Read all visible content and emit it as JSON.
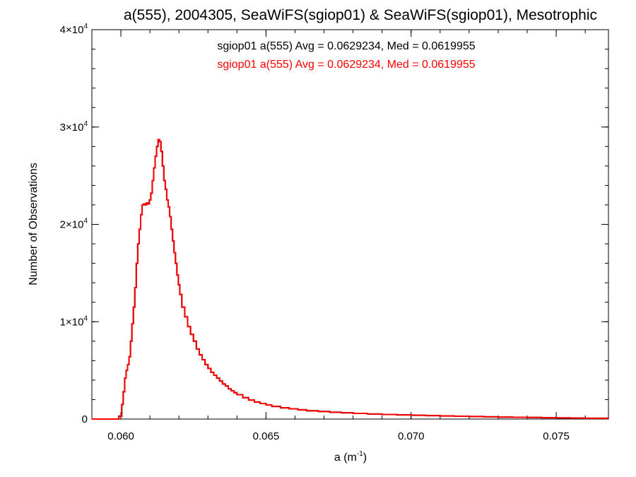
{
  "chart_data": {
    "type": "histogram-step",
    "title": "a(555), 2004305, SeaWiFS(sgiop01) & SeaWiFS(sgiop01), Mesotrophic",
    "xlabel_base": "a (m",
    "xlabel_exp": "-1",
    "xlabel_close": ")",
    "ylabel": "Number of Observations",
    "xlim": [
      0.059,
      0.0768
    ],
    "ylim": [
      0,
      40000
    ],
    "x_ticks": [
      {
        "value": 0.06,
        "label": "0.060"
      },
      {
        "value": 0.065,
        "label": "0.065"
      },
      {
        "value": 0.07,
        "label": "0.070"
      },
      {
        "value": 0.075,
        "label": "0.075"
      }
    ],
    "y_ticks": [
      {
        "value": 0,
        "mant": "0",
        "exp": ""
      },
      {
        "value": 10000,
        "mant": "1×10",
        "exp": "4"
      },
      {
        "value": 20000,
        "mant": "2×10",
        "exp": "4"
      },
      {
        "value": 30000,
        "mant": "3×10",
        "exp": "4"
      },
      {
        "value": 40000,
        "mant": "4×10",
        "exp": "4"
      }
    ],
    "annotations": [
      {
        "text": "sgiop01 a(555) Avg = 0.0629234, Med = 0.0619955",
        "color": "#000000"
      },
      {
        "text": "sgiop01 a(555) Avg = 0.0629234, Med = 0.0619955",
        "color": "#ff0000"
      }
    ],
    "series": [
      {
        "color": "#ff0000",
        "under_color": "#000000",
        "x": [
          0.059,
          0.0598,
          0.05993,
          0.06003,
          0.06008,
          0.06013,
          0.06018,
          0.06023,
          0.06028,
          0.06033,
          0.06038,
          0.06043,
          0.06048,
          0.06053,
          0.06058,
          0.06063,
          0.06068,
          0.06073,
          0.06078,
          0.06083,
          0.06088,
          0.06093,
          0.06098,
          0.06103,
          0.06108,
          0.06113,
          0.06118,
          0.06123,
          0.06128,
          0.06133,
          0.06138,
          0.06143,
          0.06148,
          0.06153,
          0.06158,
          0.06163,
          0.06168,
          0.06173,
          0.06178,
          0.06183,
          0.06188,
          0.06193,
          0.06198,
          0.06203,
          0.0621,
          0.0622,
          0.0623,
          0.0624,
          0.0625,
          0.0626,
          0.0627,
          0.0628,
          0.0629,
          0.063,
          0.0631,
          0.0632,
          0.0633,
          0.0634,
          0.0635,
          0.0636,
          0.0637,
          0.0638,
          0.0639,
          0.064,
          0.0642,
          0.0644,
          0.0646,
          0.0648,
          0.065,
          0.0652,
          0.0655,
          0.0658,
          0.0661,
          0.0664,
          0.0668,
          0.0672,
          0.0676,
          0.068,
          0.0685,
          0.069,
          0.0695,
          0.07,
          0.0705,
          0.071,
          0.0715,
          0.072,
          0.0725,
          0.073,
          0.0735,
          0.074,
          0.0745,
          0.075,
          0.0755,
          0.076,
          0.0768
        ],
        "y": [
          0,
          0,
          300,
          1500,
          2800,
          4200,
          5000,
          5600,
          6400,
          8000,
          9800,
          11500,
          13500,
          16000,
          18000,
          19500,
          21000,
          22000,
          22100,
          22000,
          22200,
          22100,
          22500,
          23200,
          24500,
          25800,
          27000,
          28000,
          28700,
          28500,
          27500,
          26000,
          24500,
          23600,
          22500,
          21800,
          20800,
          19500,
          18300,
          17100,
          16000,
          14800,
          13800,
          12800,
          11500,
          10500,
          9500,
          8700,
          8000,
          7200,
          6600,
          6100,
          5600,
          5200,
          4800,
          4500,
          4200,
          3900,
          3600,
          3400,
          3100,
          2900,
          2700,
          2500,
          2200,
          1950,
          1750,
          1600,
          1450,
          1300,
          1150,
          1050,
          950,
          850,
          780,
          700,
          640,
          580,
          520,
          470,
          430,
          390,
          350,
          320,
          290,
          260,
          230,
          200,
          180,
          160,
          140,
          120,
          100,
          85,
          70
        ]
      }
    ]
  }
}
